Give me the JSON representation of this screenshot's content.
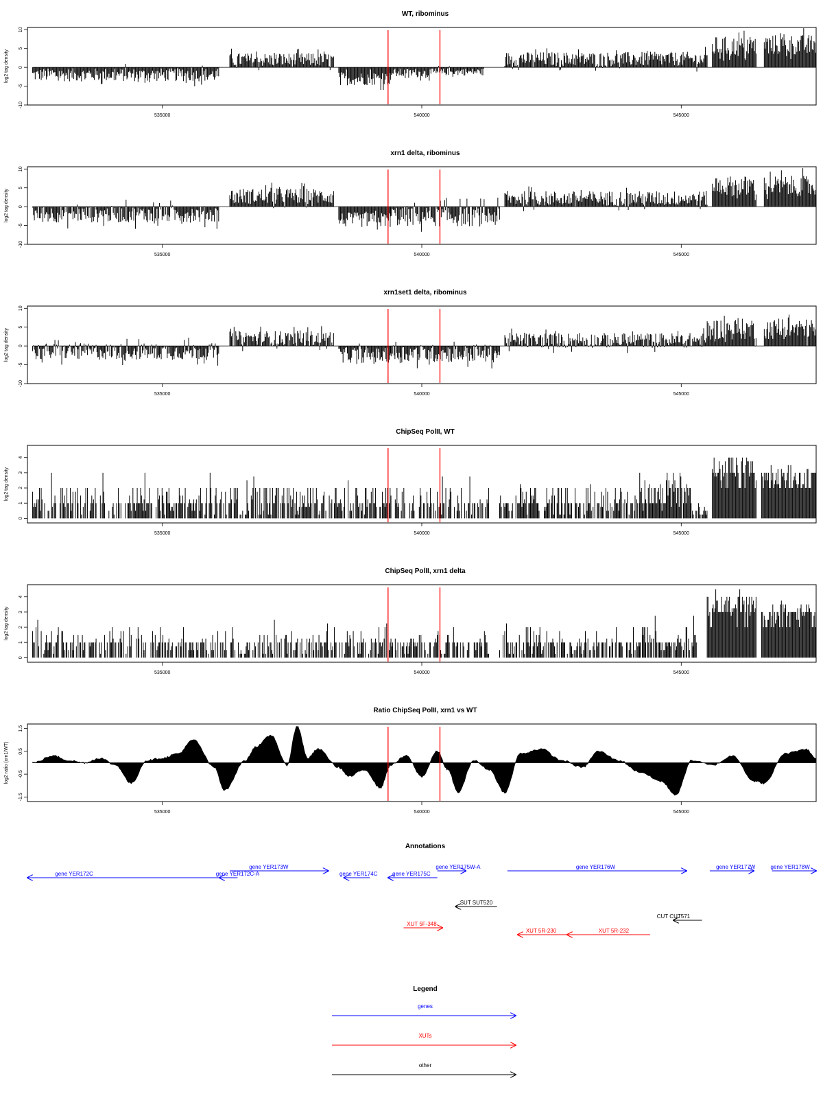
{
  "colors": {
    "genes": "#0000ff",
    "XUTs": "#ff0000",
    "other": "#000000",
    "marker": "#ff0000",
    "bars": "#000000"
  },
  "chart_data": [
    {
      "id": "wt",
      "type": "bar",
      "title": "WT, ribominus",
      "ylabel": "log2 tag density",
      "xlim": [
        532400,
        547600
      ],
      "ylim": [
        -10,
        10.6
      ],
      "yticks": [
        10,
        5,
        0,
        -5,
        -10
      ],
      "xticks": [
        535000,
        540000,
        545000
      ],
      "xtick_labels": [
        "535000",
        "540000",
        "545000"
      ],
      "markers": [
        539350,
        540350
      ],
      "segments": [
        {
          "start": 532500,
          "end": 536100,
          "base": -2,
          "amp": 2.2
        },
        {
          "start": 536300,
          "end": 538300,
          "base": 2,
          "amp": 2.3
        },
        {
          "start": 538400,
          "end": 539400,
          "base": -3,
          "amp": 2.2
        },
        {
          "start": 539400,
          "end": 540400,
          "base": -1.5,
          "amp": 1.5
        },
        {
          "start": 540400,
          "end": 541200,
          "base": -1.2,
          "amp": 1.2
        },
        {
          "start": 541600,
          "end": 545500,
          "base": 2.2,
          "amp": 2.4
        },
        {
          "start": 545600,
          "end": 546450,
          "base": 5.5,
          "amp": 3.4
        },
        {
          "start": 546600,
          "end": 547600,
          "base": 6,
          "amp": 3.4
        }
      ]
    },
    {
      "id": "xrn1",
      "type": "bar",
      "title": "xrn1 delta, ribominus",
      "ylabel": "log2 tag density",
      "xlim": [
        532400,
        547600
      ],
      "ylim": [
        -10,
        10.6
      ],
      "yticks": [
        10,
        5,
        0,
        -5,
        -10
      ],
      "xticks": [
        535000,
        540000,
        545000
      ],
      "xtick_labels": [
        "535000",
        "540000",
        "545000"
      ],
      "markers": [
        539350,
        540350
      ],
      "segments": [
        {
          "start": 532500,
          "end": 536100,
          "base": -2,
          "amp": 2.8
        },
        {
          "start": 536300,
          "end": 538300,
          "base": 2.8,
          "amp": 2.6
        },
        {
          "start": 538400,
          "end": 539400,
          "base": -3.5,
          "amp": 2.5
        },
        {
          "start": 539400,
          "end": 541500,
          "base": -2.5,
          "amp": 3.5
        },
        {
          "start": 541600,
          "end": 545500,
          "base": 2.2,
          "amp": 2.5
        },
        {
          "start": 545600,
          "end": 546450,
          "base": 5.5,
          "amp": 3.4
        },
        {
          "start": 546600,
          "end": 547600,
          "base": 5.5,
          "amp": 3.4
        }
      ]
    },
    {
      "id": "xrn1set1",
      "type": "bar",
      "title": "xrn1set1 delta, ribominus",
      "ylabel": "log2 tag density",
      "xlim": [
        532400,
        547600
      ],
      "ylim": [
        -10,
        10.6
      ],
      "yticks": [
        10,
        5,
        0,
        -5,
        -10
      ],
      "xticks": [
        535000,
        540000,
        545000
      ],
      "xtick_labels": [
        "535000",
        "540000",
        "545000"
      ],
      "markers": [
        539350,
        540350
      ],
      "segments": [
        {
          "start": 532500,
          "end": 536100,
          "base": -1.5,
          "amp": 2.8
        },
        {
          "start": 536300,
          "end": 538300,
          "base": 2,
          "amp": 2.6
        },
        {
          "start": 538400,
          "end": 539400,
          "base": -2.5,
          "amp": 2.5
        },
        {
          "start": 539400,
          "end": 541500,
          "base": -2,
          "amp": 3
        },
        {
          "start": 541600,
          "end": 545500,
          "base": 1.5,
          "amp": 2.5
        },
        {
          "start": 545500,
          "end": 546450,
          "base": 4.5,
          "amp": 3.5
        },
        {
          "start": 546600,
          "end": 547600,
          "base": 4.5,
          "amp": 3.4
        }
      ]
    },
    {
      "id": "pol_wt",
      "type": "bar",
      "title": "ChipSeq PolII, WT",
      "ylabel": "log2 tag density",
      "xlim": [
        532400,
        547600
      ],
      "ylim": [
        -0.3,
        4.8
      ],
      "yticks": [
        0,
        1,
        2,
        3,
        4
      ],
      "xticks": [
        535000,
        540000,
        545000
      ],
      "xtick_labels": [
        "535000",
        "540000",
        "545000"
      ],
      "markers": [
        539350,
        540350
      ],
      "segments": [
        {
          "start": 532500,
          "end": 541300,
          "base": 1,
          "amp": 1.4
        },
        {
          "start": 541500,
          "end": 544200,
          "base": 1.1,
          "amp": 1.4
        },
        {
          "start": 544200,
          "end": 545200,
          "base": 1.8,
          "amp": 1.6
        },
        {
          "start": 545200,
          "end": 545500,
          "base": 0.6,
          "amp": 0.5
        },
        {
          "start": 545600,
          "end": 546450,
          "base": 3.2,
          "amp": 1.0
        },
        {
          "start": 546550,
          "end": 547600,
          "base": 2.8,
          "amp": 0.8
        }
      ]
    },
    {
      "id": "pol_xrn1",
      "type": "bar",
      "title": "ChipSeq PolII, xrn1 delta",
      "ylabel": "log2 tag density",
      "xlim": [
        532400,
        547600
      ],
      "ylim": [
        -0.3,
        4.8
      ],
      "yticks": [
        0,
        1,
        2,
        3,
        4
      ],
      "xticks": [
        535000,
        540000,
        545000
      ],
      "xtick_labels": [
        "535000",
        "540000",
        "545000"
      ],
      "markers": [
        539350,
        540350
      ],
      "segments": [
        {
          "start": 532500,
          "end": 541300,
          "base": 0.8,
          "amp": 1.2
        },
        {
          "start": 541500,
          "end": 544200,
          "base": 0.9,
          "amp": 1.1
        },
        {
          "start": 544200,
          "end": 545300,
          "base": 1.3,
          "amp": 1.2
        },
        {
          "start": 545500,
          "end": 546450,
          "base": 3.4,
          "amp": 0.9
        },
        {
          "start": 546550,
          "end": 547600,
          "base": 3,
          "amp": 0.8
        }
      ]
    },
    {
      "id": "ratio",
      "type": "area",
      "title": "Ratio ChipSeq PolII, xrn1 vs WT",
      "ylabel": "log2 ratio (xrn1/WT)",
      "xlim": [
        532400,
        547600
      ],
      "ylim": [
        -1.7,
        1.7
      ],
      "yticks": [
        1.5,
        0.5,
        -0.5,
        -1.5
      ],
      "xticks": [
        535000,
        540000,
        545000
      ],
      "xtick_labels": [
        "535000",
        "540000",
        "545000"
      ],
      "markers": [
        539350,
        540350
      ],
      "x": [
        532500,
        532900,
        533200,
        533500,
        533800,
        534100,
        534400,
        534700,
        535000,
        535300,
        535600,
        536000,
        536200,
        536600,
        536800,
        537100,
        537400,
        537600,
        537800,
        538000,
        538400,
        538600,
        538900,
        539200,
        539400,
        539700,
        540000,
        540300,
        540500,
        540700,
        541000,
        541300,
        541600,
        541900,
        542300,
        542700,
        543100,
        543400,
        543800,
        544200,
        544600,
        544900,
        545200,
        545600,
        546000,
        546400,
        546600,
        547000,
        547400,
        547600
      ],
      "y": [
        0,
        0.3,
        0.1,
        0,
        0.2,
        -0.1,
        -0.9,
        0.1,
        0.2,
        0.4,
        1.0,
        -0.2,
        -1.2,
        0.1,
        0.7,
        1.2,
        -0.1,
        1.6,
        0.2,
        0.6,
        -0.2,
        -0.6,
        -0.3,
        -1.1,
        -0.1,
        0.3,
        -0.6,
        0.5,
        -0.3,
        -1.3,
        0.1,
        -0.3,
        -1.3,
        0.4,
        0.6,
        0.1,
        -0.2,
        0.5,
        0.1,
        -0.4,
        -0.8,
        -1.4,
        0.1,
        -0.1,
        0.3,
        -0.8,
        -0.9,
        0.4,
        0.6,
        0.2
      ]
    }
  ],
  "annotations": {
    "title": "Annotations",
    "items": [
      {
        "label": "gene YER172C",
        "type": "genes",
        "start": 532400,
        "end": 536100,
        "row": 1,
        "dir": -1,
        "label_pos": 533300
      },
      {
        "label": "gene YER172C-A",
        "type": "genes",
        "start": 536100,
        "end": 536450,
        "row": 1,
        "dir": -1,
        "label_pos": 536450
      },
      {
        "label": "gene YER173W",
        "type": "genes",
        "start": 536300,
        "end": 538200,
        "row": 0,
        "dir": 1,
        "label_pos": 537050
      },
      {
        "label": "gene YER174C",
        "type": "genes",
        "start": 538500,
        "end": 539000,
        "row": 1,
        "dir": -1,
        "label_pos": 538780
      },
      {
        "label": "gene YER175C",
        "type": "genes",
        "start": 539350,
        "end": 540300,
        "row": 1,
        "dir": -1,
        "label_pos": 539800
      },
      {
        "label": "gene YER175W-A",
        "type": "genes",
        "start": 540300,
        "end": 540850,
        "row": 0,
        "dir": 1,
        "label_pos": 540700
      },
      {
        "label": "gene YER176W",
        "type": "genes",
        "start": 541650,
        "end": 545100,
        "row": 0,
        "dir": 1,
        "label_pos": 543350
      },
      {
        "label": "gene YER177W",
        "type": "genes",
        "start": 545550,
        "end": 546400,
        "row": 0,
        "dir": 1,
        "label_pos": 546050
      },
      {
        "label": "gene YER178W",
        "type": "genes",
        "start": 546750,
        "end": 547600,
        "row": 0,
        "dir": 1,
        "label_pos": 547100
      },
      {
        "label": "SUT SUT520",
        "type": "other",
        "start": 540650,
        "end": 541450,
        "row": 2,
        "dir": -1,
        "label_pos": 541050
      },
      {
        "label": "CUT CUT571",
        "type": "other",
        "start": 544850,
        "end": 545400,
        "row": 3,
        "dir": -1,
        "label_pos": 544850
      },
      {
        "label": "XUT 5F-348",
        "type": "XUTs",
        "start": 539650,
        "end": 540400,
        "row": 4,
        "dir": 1,
        "label_pos": 540000
      },
      {
        "label": "XUT 5R-230",
        "type": "XUTs",
        "start": 541850,
        "end": 542800,
        "row": 5,
        "dir": -1,
        "label_pos": 542300
      },
      {
        "label": "XUT 5R-232",
        "type": "XUTs",
        "start": 542800,
        "end": 544400,
        "row": 5,
        "dir": -1,
        "label_pos": 543700
      }
    ]
  },
  "legend": {
    "title": "Legend",
    "entries": [
      {
        "label": "genes",
        "type": "genes"
      },
      {
        "label": "XUTs",
        "type": "XUTs"
      },
      {
        "label": "other",
        "type": "other"
      }
    ]
  }
}
